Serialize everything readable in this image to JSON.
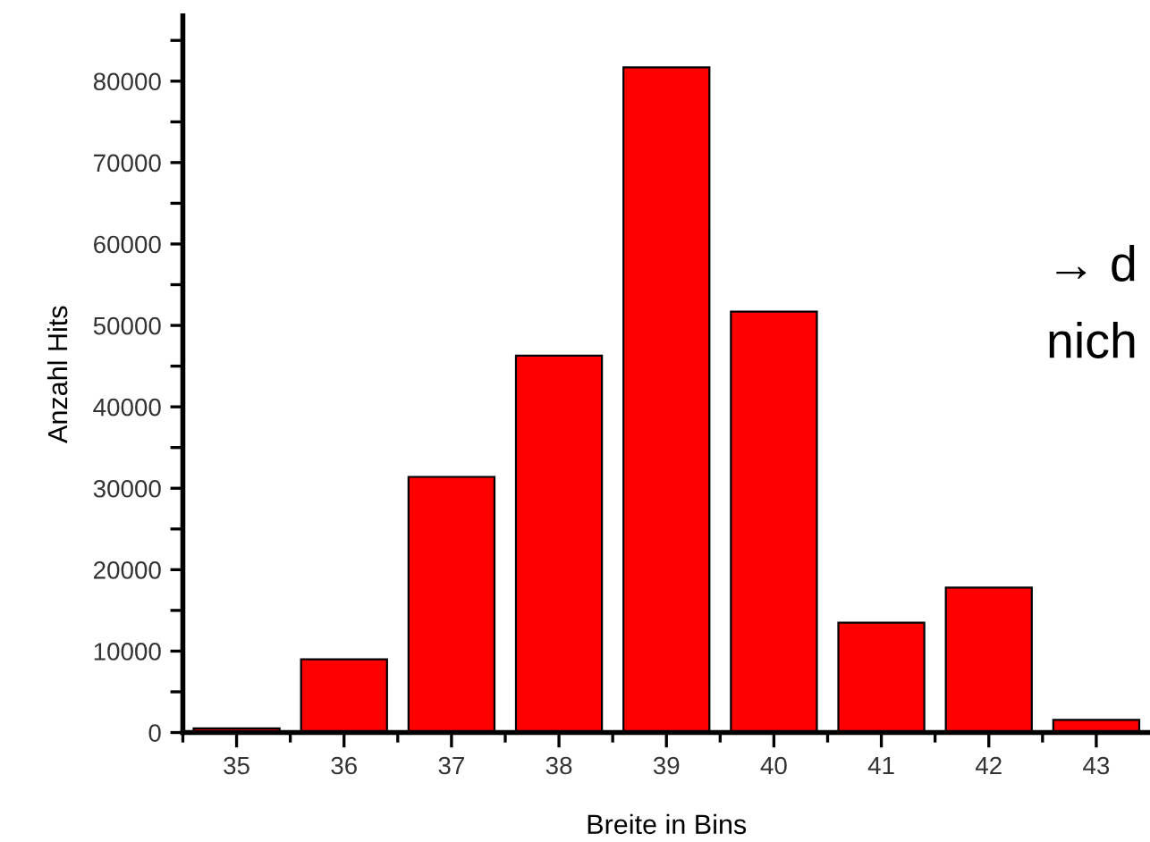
{
  "chart_data": {
    "type": "bar",
    "xlabel": "Breite in Bins",
    "ylabel": "Anzahl Hits",
    "categories": [
      "35",
      "36",
      "37",
      "38",
      "39",
      "40",
      "41",
      "42",
      "43"
    ],
    "values": [
      500,
      9000,
      31400,
      46300,
      81700,
      51700,
      13500,
      17800,
      1550
    ],
    "color": "#ff0000",
    "ylim": [
      0,
      88000
    ],
    "yticks": [
      0,
      {
        "value": 5000,
        "label": null
      },
      10000,
      {
        "value": 15000,
        "label": null
      },
      20000,
      {
        "value": 25000,
        "label": null
      },
      30000,
      {
        "value": 35000,
        "label": null
      },
      40000,
      {
        "value": 45000,
        "label": null
      },
      50000,
      {
        "value": 55000,
        "label": null
      },
      60000,
      {
        "value": 65000,
        "label": null
      },
      70000,
      {
        "value": 75000,
        "label": null
      },
      80000,
      {
        "value": 85000,
        "label": null
      }
    ],
    "grid": false,
    "legend": false,
    "annotations": [
      "→ d",
      "nich"
    ]
  }
}
